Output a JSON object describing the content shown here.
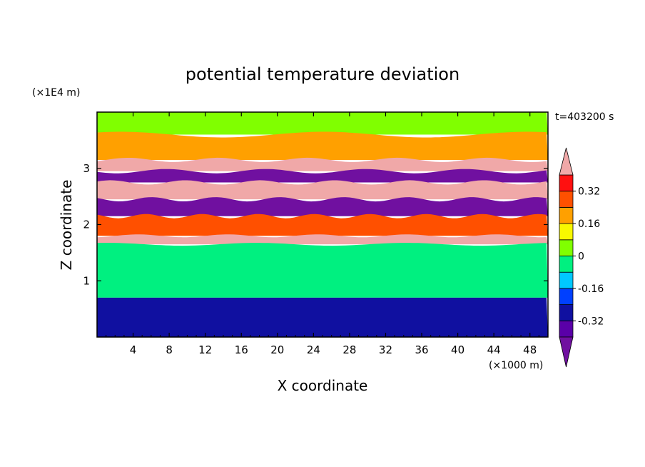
{
  "chart_data": {
    "type": "heatmap",
    "title": "potential temperature deviation",
    "xlabel": "X coordinate",
    "ylabel": "Z coordinate",
    "x_unit": "(×1000 m)",
    "y_unit": "(×1E4 m)",
    "time_label": "t=403200 s",
    "xlim": [
      0,
      50
    ],
    "ylim": [
      0,
      4
    ],
    "x_ticks": [
      4,
      8,
      12,
      16,
      20,
      24,
      28,
      32,
      36,
      40,
      44,
      48
    ],
    "y_ticks": [
      1,
      2,
      3
    ],
    "colorbar": {
      "labels": [
        "0.32",
        "0.16",
        "0",
        "-0.16",
        "-0.32"
      ],
      "label_values": [
        0.32,
        0.16,
        0,
        -0.16,
        -0.32
      ],
      "levels": [
        {
          "min": -0.4,
          "max": -0.32,
          "color": "#5a00a8"
        },
        {
          "min": -0.32,
          "max": -0.24,
          "color": "#1010a0"
        },
        {
          "min": -0.24,
          "max": -0.16,
          "color": "#0040ff"
        },
        {
          "min": -0.16,
          "max": -0.08,
          "color": "#00c8ff"
        },
        {
          "min": -0.08,
          "max": 0.0,
          "color": "#00f080"
        },
        {
          "min": 0.0,
          "max": 0.08,
          "color": "#80ff00"
        },
        {
          "min": 0.08,
          "max": 0.16,
          "color": "#f8f800"
        },
        {
          "min": 0.16,
          "max": 0.24,
          "color": "#ffa000"
        },
        {
          "min": 0.24,
          "max": 0.32,
          "color": "#ff5000"
        },
        {
          "min": 0.32,
          "max": 0.4,
          "color": "#ff1010"
        }
      ],
      "over_color": "#f0a8a8",
      "under_color": "#7010a0"
    },
    "field_layers": [
      {
        "z_min": 3.6,
        "z_max": 4.0,
        "value": 0.04
      },
      {
        "z_min": 3.15,
        "z_max": 3.6,
        "value": 0.2
      },
      {
        "z_min": 2.95,
        "z_max": 3.15,
        "value": 0.45
      },
      {
        "z_min": 2.75,
        "z_max": 2.95,
        "value": -0.45
      },
      {
        "z_min": 2.45,
        "z_max": 2.75,
        "value": 0.45
      },
      {
        "z_min": 2.15,
        "z_max": 2.45,
        "value": -0.45
      },
      {
        "z_min": 1.8,
        "z_max": 2.15,
        "value": 0.3
      },
      {
        "z_min": 1.65,
        "z_max": 1.8,
        "value": 0.45
      },
      {
        "z_min": 0.7,
        "z_max": 1.65,
        "value": -0.02
      },
      {
        "z_min": 0.0,
        "z_max": 0.7,
        "value": -0.3
      }
    ]
  }
}
